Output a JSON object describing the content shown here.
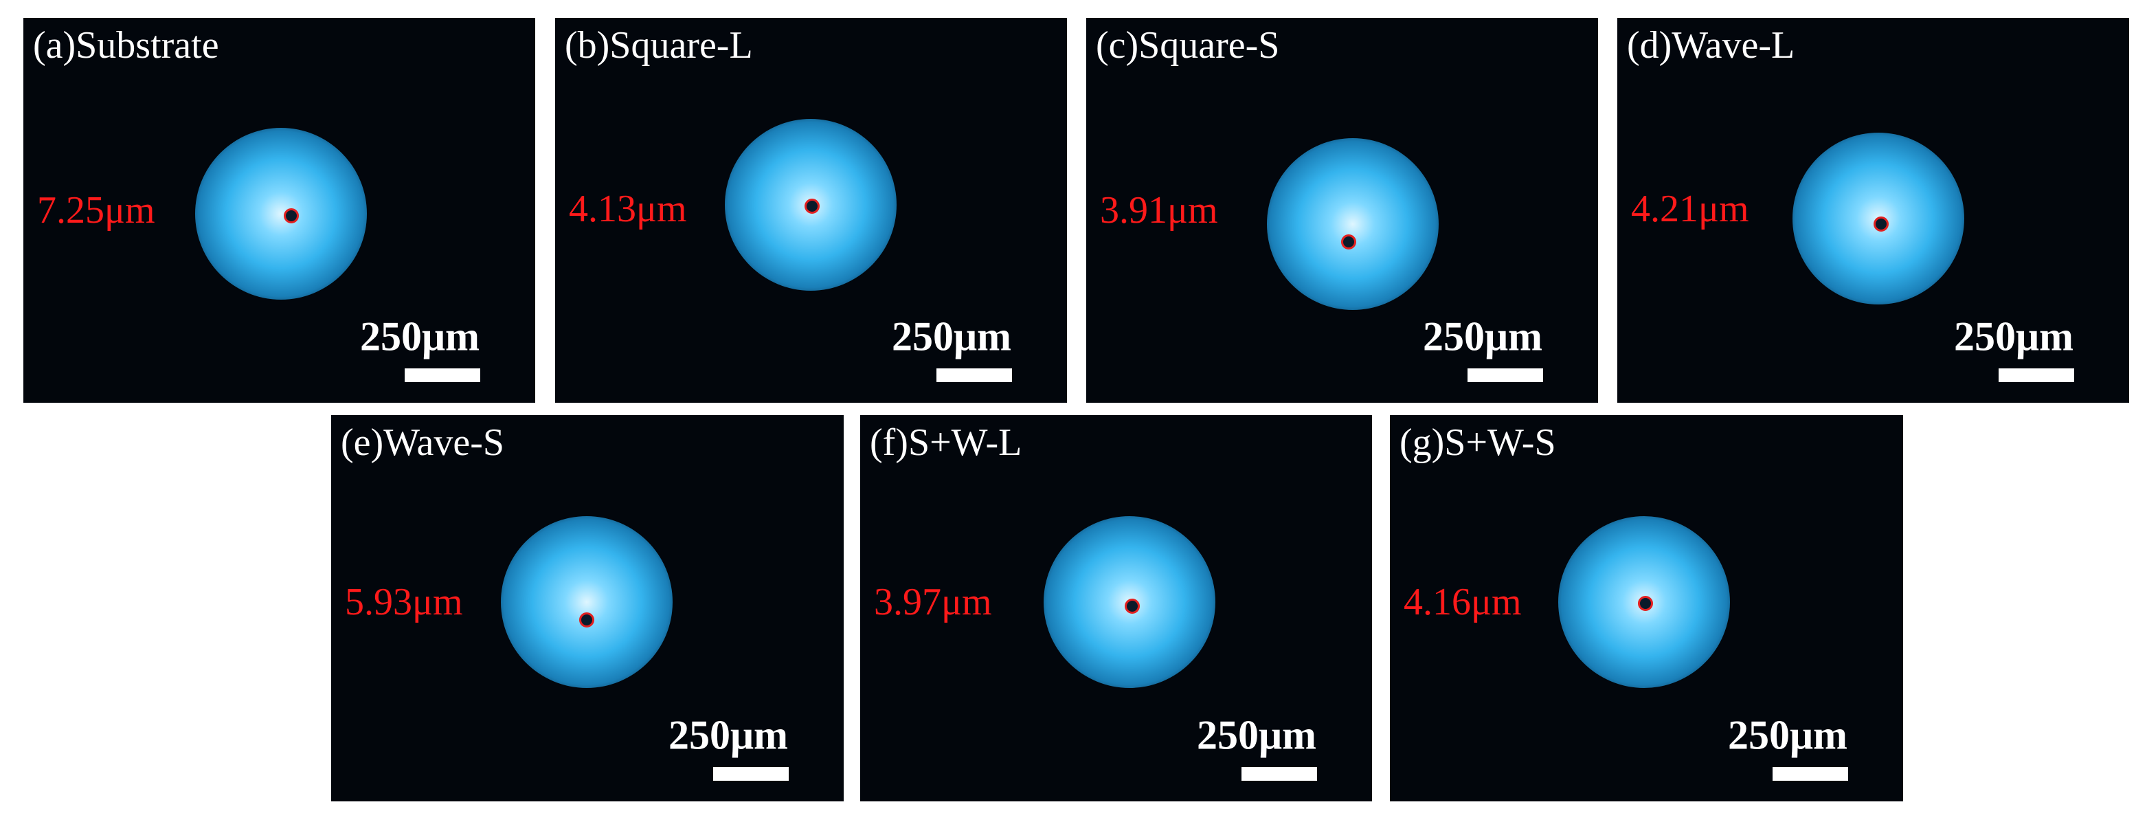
{
  "panels": [
    {
      "label": "(a)Substrate",
      "measurement": "7.25μm",
      "scale": "250μm"
    },
    {
      "label": "(b)Square-L",
      "measurement": "4.13μm",
      "scale": "250μm"
    },
    {
      "label": "(c)Square-S",
      "measurement": "3.91μm",
      "scale": "250μm"
    },
    {
      "label": "(d)Wave-L",
      "measurement": "4.21μm",
      "scale": "250μm"
    },
    {
      "label": "(e)Wave-S",
      "measurement": "5.93μm",
      "scale": "250μm"
    },
    {
      "label": "(f)S+W-L",
      "measurement": "3.97μm",
      "scale": "250μm"
    },
    {
      "label": "(g)S+W-S",
      "measurement": "4.16μm",
      "scale": "250μm"
    }
  ]
}
